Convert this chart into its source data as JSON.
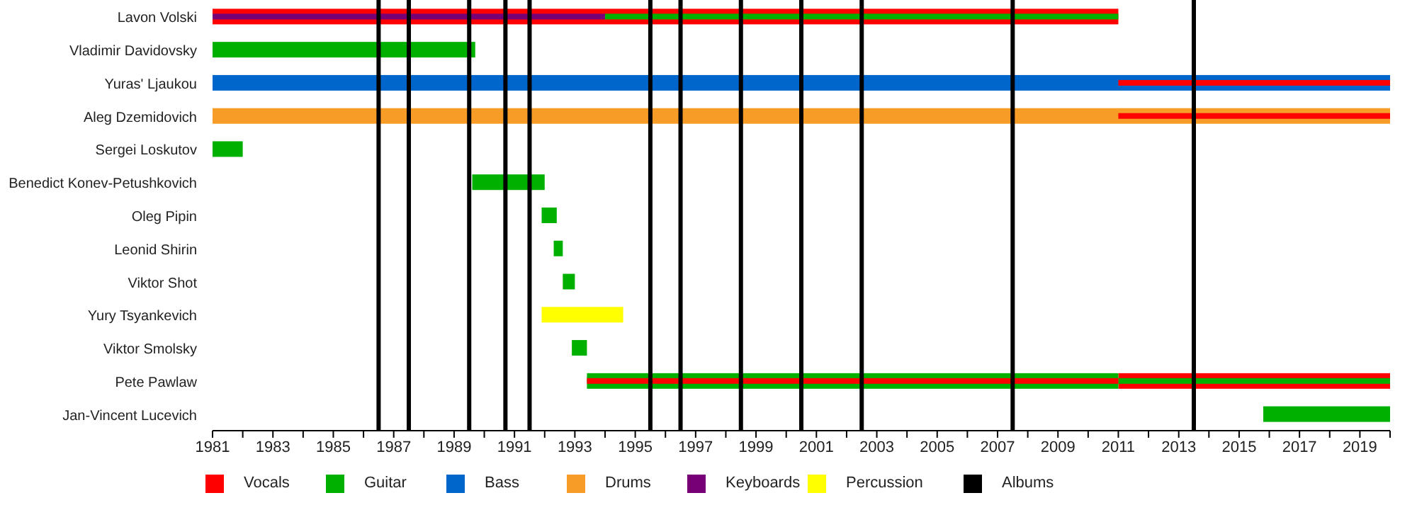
{
  "chart_data": {
    "type": "bar",
    "orientation": "horizontal",
    "legend": "bottom",
    "grid": false,
    "categories": [
      "Lavon Volski",
      "Vladimir Davidovsky",
      "Yuras' Ljaukou",
      "Aleg Dzemidovich",
      "Sergei Loskutov",
      "Benedict Konev-Petushkovich",
      "Oleg Pipin",
      "Leonid Shirin",
      "Viktor Shot",
      "Yury Tsyankevich",
      "Viktor Smolsky",
      "Pete Pawlaw",
      "Jan-Vincent Lucevich"
    ],
    "xlim": [
      1981,
      2020
    ],
    "xticks": [
      1981,
      {
        "value": 1982,
        "label": null
      },
      1983,
      {
        "value": 1984,
        "label": null
      },
      1985,
      {
        "value": 1986,
        "label": null
      },
      1987,
      {
        "value": 1988,
        "label": null
      },
      1989,
      {
        "value": 1990,
        "label": null
      },
      1991,
      {
        "value": 1992,
        "label": null
      },
      1993,
      {
        "value": 1994,
        "label": null
      },
      1995,
      {
        "value": 1996,
        "label": null
      },
      1997,
      {
        "value": 1998,
        "label": null
      },
      1999,
      {
        "value": 2000,
        "label": null
      },
      2001,
      {
        "value": 2002,
        "label": null
      },
      2003,
      {
        "value": 2004,
        "label": null
      },
      2005,
      {
        "value": 2006,
        "label": null
      },
      2007,
      {
        "value": 2008,
        "label": null
      },
      2009,
      {
        "value": 2010,
        "label": null
      },
      2011,
      {
        "value": 2012,
        "label": null
      },
      2013,
      {
        "value": 2014,
        "label": null
      },
      2015,
      {
        "value": 2016,
        "label": null
      },
      2017,
      {
        "value": 2018,
        "label": null
      },
      2019,
      {
        "value": 2020,
        "label": null
      }
    ],
    "series": [
      {
        "name": "Vocals",
        "color": "#ff0000",
        "values": [
          30,
          null,
          null,
          null,
          null,
          null,
          null,
          null,
          null,
          null,
          null,
          9,
          null
        ],
        "base": [
          1981,
          null,
          null,
          null,
          null,
          null,
          null,
          null,
          null,
          null,
          null,
          2011,
          null
        ]
      },
      {
        "name": "Guitar",
        "color": "#00b000",
        "values": [
          null,
          8.7,
          null,
          null,
          1,
          2.4,
          0.5,
          0.3,
          0.4,
          null,
          0.5,
          17.6,
          4.2
        ],
        "base": [
          null,
          1981,
          null,
          null,
          1981,
          1989.6,
          1991.9,
          1992.3,
          1992.6,
          null,
          1992.9,
          1993.4,
          2015.8
        ]
      },
      {
        "name": "Bass",
        "color": "#0066cc",
        "values": [
          null,
          null,
          39,
          null,
          null,
          null,
          null,
          null,
          null,
          null,
          null,
          null,
          null
        ],
        "base": [
          null,
          null,
          1981,
          null,
          null,
          null,
          null,
          null,
          null,
          null,
          null,
          null,
          null
        ]
      },
      {
        "name": "Drums",
        "color": "#f89c28",
        "values": [
          null,
          null,
          null,
          39,
          null,
          null,
          null,
          null,
          null,
          null,
          null,
          null,
          null
        ],
        "base": [
          null,
          null,
          null,
          1981,
          null,
          null,
          null,
          null,
          null,
          null,
          null,
          null,
          null
        ]
      },
      {
        "name": "Keyboards",
        "color": "#770077",
        "axis": "y2",
        "values": [
          13,
          null,
          null,
          null,
          null,
          null,
          null,
          null,
          null,
          null,
          null,
          null,
          null
        ],
        "base": [
          1981,
          null,
          null,
          null,
          null,
          null,
          null,
          null,
          null,
          null,
          null,
          null,
          null
        ]
      },
      {
        "name": "Percussion",
        "color": "#ffff00",
        "values": [
          null,
          null,
          null,
          null,
          null,
          null,
          null,
          null,
          null,
          2.7,
          null,
          null,
          null
        ],
        "base": [
          null,
          null,
          null,
          null,
          null,
          null,
          null,
          null,
          null,
          1991.9,
          null,
          null,
          null
        ]
      },
      {
        "color": "#00b000",
        "axis": "y2",
        "values": [
          17,
          null,
          null,
          null,
          null,
          null,
          null,
          null,
          null,
          null,
          null,
          9,
          null
        ],
        "base": [
          1994,
          null,
          null,
          null,
          null,
          null,
          null,
          null,
          null,
          null,
          null,
          2011,
          null
        ]
      },
      {
        "color": "#ff0000",
        "axis": "y2",
        "values": [
          null,
          null,
          9,
          9,
          null,
          null,
          null,
          null,
          null,
          null,
          null,
          17.6,
          null
        ],
        "base": [
          null,
          null,
          2011,
          2011,
          null,
          null,
          null,
          null,
          null,
          null,
          null,
          1993.4,
          null
        ]
      }
    ],
    "ref_lines": [
      {
        "axis": "x",
        "value": 1986.5,
        "color": "#000000",
        "label": "Albums"
      },
      {
        "axis": "x",
        "value": 1987.5,
        "color": "#000000"
      },
      {
        "axis": "x",
        "value": 1989.5,
        "color": "#000000"
      },
      {
        "axis": "x",
        "value": 1990.7,
        "color": "#000000"
      },
      {
        "axis": "x",
        "value": 1991.5,
        "color": "#000000"
      },
      {
        "axis": "x",
        "value": 1995.5,
        "color": "#000000"
      },
      {
        "axis": "x",
        "value": 1996.5,
        "color": "#000000"
      },
      {
        "axis": "x",
        "value": 1998.5,
        "color": "#000000"
      },
      {
        "axis": "x",
        "value": 2000.5,
        "color": "#000000"
      },
      {
        "axis": "x",
        "value": 2002.5,
        "color": "#000000"
      },
      {
        "axis": "x",
        "value": 2007.5,
        "color": "#000000"
      },
      {
        "axis": "x",
        "value": 2013.5,
        "color": "#000000"
      }
    ]
  }
}
